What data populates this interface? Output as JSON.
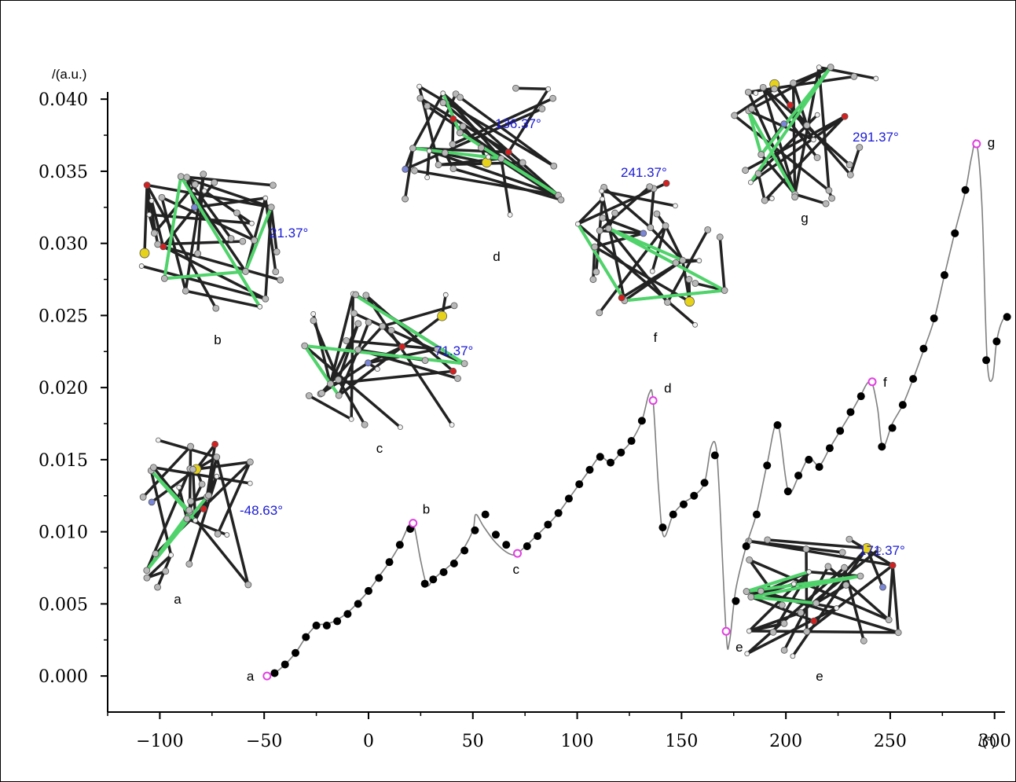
{
  "chart_data": {
    "type": "line",
    "ylabel": "/(a.u.)",
    "xlabel": "/(°)",
    "xlim": [
      -125,
      305
    ],
    "ylim": [
      -0.0025,
      0.0405
    ],
    "xticks": [
      -100,
      -50,
      0,
      50,
      100,
      150,
      200,
      250,
      300
    ],
    "xtick_labels": [
      "−100",
      "−50",
      "0",
      "50",
      "100",
      "150",
      "200",
      "250",
      "300"
    ],
    "yticks": [
      0.0,
      0.005,
      0.01,
      0.015,
      0.02,
      0.025,
      0.03,
      0.035,
      0.04
    ],
    "ytick_labels": [
      "0.000",
      "0.005",
      "0.010",
      "0.015",
      "0.020",
      "0.025",
      "0.030",
      "0.035",
      "0.040"
    ],
    "curve": {
      "x": [
        -48.63,
        -45,
        -40,
        -35,
        -30,
        -25,
        -20,
        -15,
        -10,
        -5,
        0,
        5,
        10,
        15,
        20,
        22,
        25,
        28,
        31,
        35,
        40,
        45,
        50,
        51.4,
        55,
        60,
        65,
        69,
        71.37,
        76,
        81,
        86,
        91,
        96,
        101,
        106,
        111,
        116,
        121,
        126,
        131,
        134.5,
        136.37,
        139,
        141.4,
        146,
        151,
        156,
        161,
        164,
        166.4,
        168,
        171.37,
        173,
        176,
        181,
        186,
        191,
        196,
        201,
        206,
        211,
        216,
        221,
        226,
        231,
        236,
        239,
        241.37,
        244,
        246.4,
        251,
        256,
        261,
        266,
        271,
        276,
        281,
        286,
        289,
        291.37,
        294,
        296.4,
        299,
        301,
        304,
        307
      ],
      "y": [
        0.0,
        0.0002,
        0.0008,
        0.0016,
        0.0027,
        0.0035,
        0.0036,
        0.0039,
        0.0044,
        0.0051,
        0.0059,
        0.0069,
        0.0079,
        0.0091,
        0.0106,
        0.0103,
        0.008,
        0.0063,
        0.0067,
        0.0072,
        0.0078,
        0.0087,
        0.0101,
        0.0112,
        0.0104,
        0.0094,
        0.0087,
        0.0084,
        0.0085,
        0.0091,
        0.0098,
        0.0105,
        0.0113,
        0.0123,
        0.0133,
        0.0143,
        0.0152,
        0.0148,
        0.0155,
        0.0163,
        0.0177,
        0.0196,
        0.0191,
        0.013,
        0.0097,
        0.0112,
        0.012,
        0.0125,
        0.0134,
        0.0158,
        0.016,
        0.013,
        0.003,
        0.0024,
        0.006,
        0.009,
        0.0113,
        0.0147,
        0.0175,
        0.0129,
        0.0138,
        0.0151,
        0.0146,
        0.0158,
        0.017,
        0.0182,
        0.0195,
        0.0203,
        0.0203,
        0.0185,
        0.0159,
        0.0175,
        0.0188,
        0.0206,
        0.0226,
        0.0247,
        0.0278,
        0.0308,
        0.0336,
        0.036,
        0.037,
        0.0325,
        0.022,
        0.0206,
        0.0232,
        0.0247,
        0.0248
      ]
    },
    "points": {
      "x": [
        -45,
        -40,
        -35,
        -30,
        -25,
        -20,
        -15,
        -10,
        -5,
        0,
        5,
        10,
        15,
        20,
        27,
        31,
        36,
        41,
        46,
        51,
        56,
        61,
        66,
        76,
        81,
        86,
        91,
        96,
        101,
        106,
        111,
        116,
        121,
        126,
        131,
        141,
        146,
        151,
        156,
        161,
        166,
        176,
        181,
        186,
        191,
        196,
        201,
        206,
        211,
        216,
        221,
        226,
        231,
        236,
        246,
        251,
        256,
        261,
        266,
        271,
        276,
        281,
        286,
        296,
        301,
        306
      ],
      "y": [
        0.0002,
        0.0008,
        0.0016,
        0.0027,
        0.0035,
        0.0035,
        0.0038,
        0.0043,
        0.005,
        0.0059,
        0.0068,
        0.0079,
        0.0091,
        0.0102,
        0.0064,
        0.0067,
        0.0072,
        0.0078,
        0.0087,
        0.0101,
        0.0112,
        0.0098,
        0.0091,
        0.009,
        0.0097,
        0.0105,
        0.0113,
        0.0123,
        0.0133,
        0.0143,
        0.0152,
        0.0148,
        0.0155,
        0.0163,
        0.0177,
        0.0103,
        0.0112,
        0.0119,
        0.0125,
        0.0134,
        0.0153,
        0.0052,
        0.009,
        0.0112,
        0.0146,
        0.0174,
        0.0128,
        0.0139,
        0.015,
        0.0145,
        0.0158,
        0.017,
        0.0183,
        0.0194,
        0.0159,
        0.0172,
        0.0188,
        0.0206,
        0.0227,
        0.0248,
        0.0278,
        0.0307,
        0.0337,
        0.0219,
        0.0232,
        0.0249
      ]
    },
    "highlighted": [
      {
        "label": "a",
        "x": -48.63,
        "y": 0.0
      },
      {
        "label": "b",
        "x": 21.37,
        "y": 0.0106
      },
      {
        "label": "c",
        "x": 71.37,
        "y": 0.0085
      },
      {
        "label": "d",
        "x": 136.37,
        "y": 0.0191
      },
      {
        "label": "e",
        "x": 171.37,
        "y": 0.0031
      },
      {
        "label": "f",
        "x": 241.37,
        "y": 0.0204
      },
      {
        "label": "g",
        "x": 291.37,
        "y": 0.0369
      }
    ],
    "structures": [
      {
        "label": "a",
        "angle": "-48.63°"
      },
      {
        "label": "b",
        "angle": "21.37°"
      },
      {
        "label": "c",
        "angle": "71.37°"
      },
      {
        "label": "d",
        "angle": "136.37°"
      },
      {
        "label": "e",
        "angle": "171.37°"
      },
      {
        "label": "f",
        "angle": "241.37°"
      },
      {
        "label": "g",
        "angle": "291.37°"
      }
    ],
    "colors": {
      "curve": "#7f7f7f",
      "point": "#000000",
      "highlight": "#e040e0",
      "angle_text": "#1a1ad6",
      "bond_green": "#4fd36a",
      "atom_grey": "#b8b8b8",
      "atom_red": "#d62020",
      "atom_yellow": "#e6d21a",
      "atom_blue": "#7a86d6"
    }
  }
}
